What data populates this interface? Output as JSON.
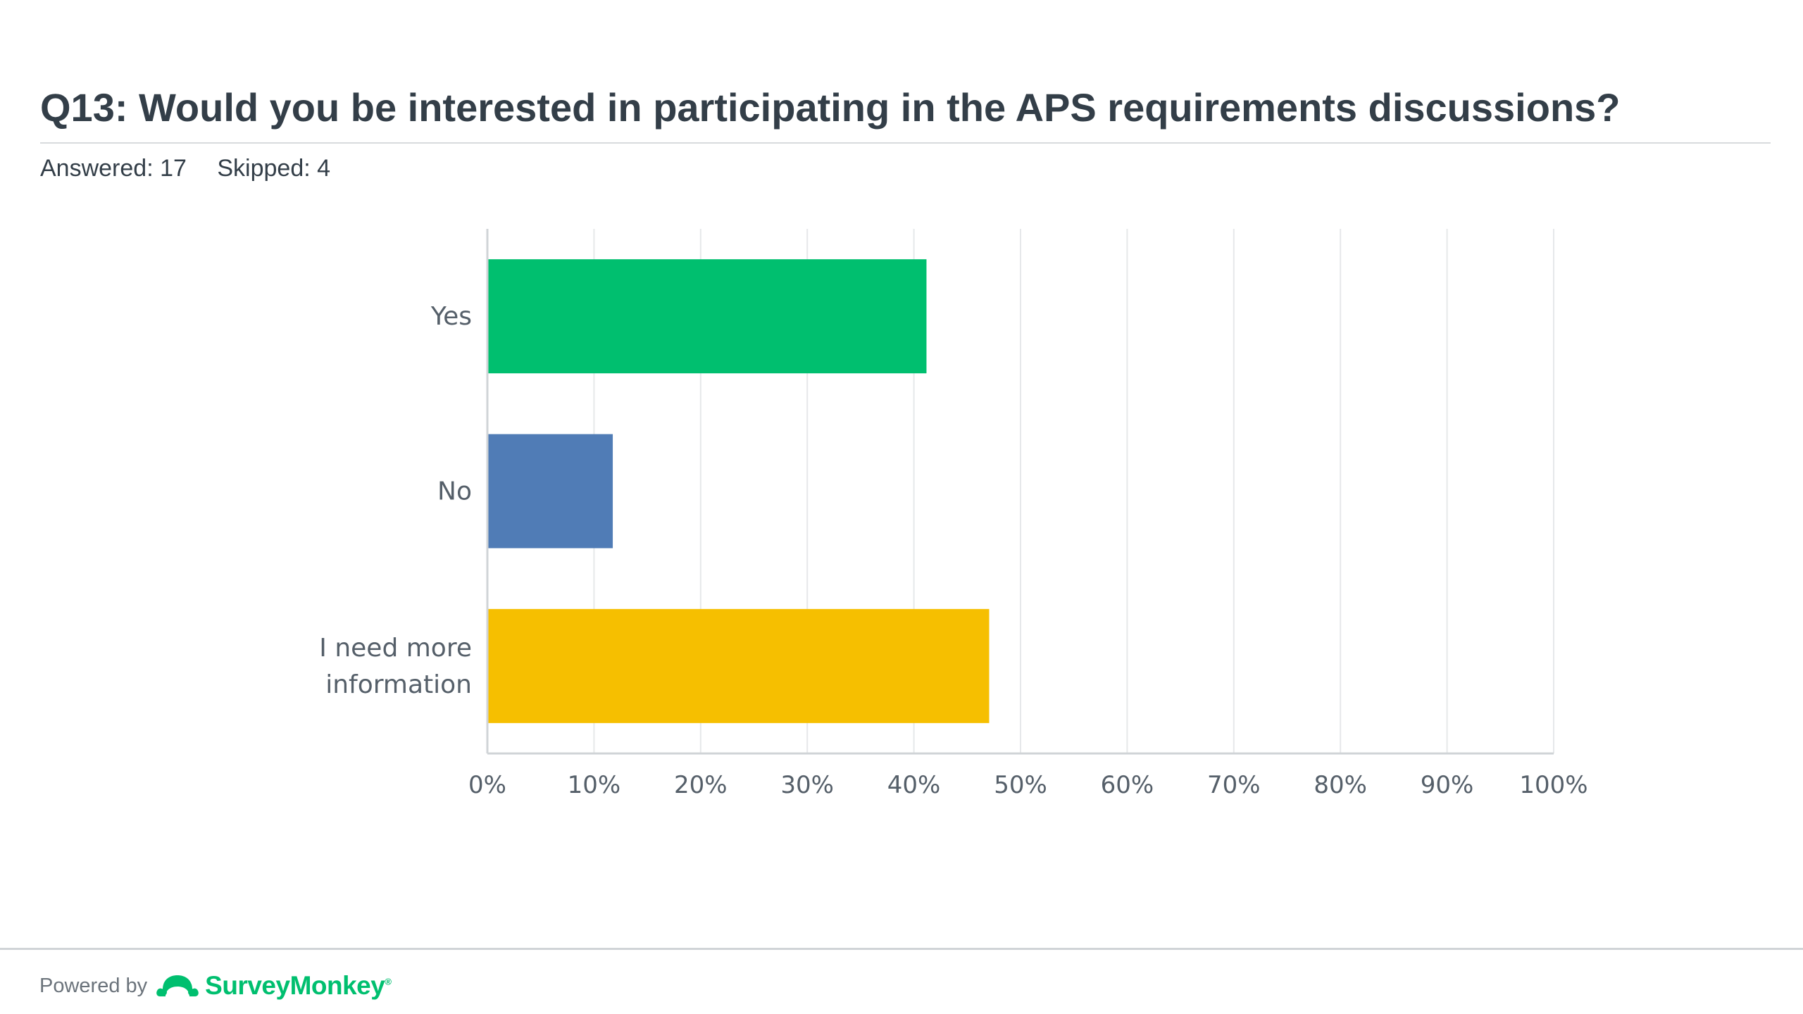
{
  "question": {
    "title": "Q13: Would you be interested in participating in the APS requirements discussions?",
    "answered": "Answered: 17",
    "skipped": "Skipped: 4"
  },
  "chart_data": {
    "type": "bar",
    "orientation": "horizontal",
    "title": "",
    "xlabel": "",
    "ylabel": "",
    "categories": [
      "Yes",
      "No",
      "I need more information"
    ],
    "category_lines": [
      [
        "Yes"
      ],
      [
        "No"
      ],
      [
        "I need more",
        "information"
      ]
    ],
    "values": [
      41.18,
      11.76,
      47.06
    ],
    "colors": [
      "#00bf6f",
      "#507cb6",
      "#f6bf00"
    ],
    "xlim": [
      0,
      100
    ],
    "xticks": [
      "0%",
      "10%",
      "20%",
      "30%",
      "40%",
      "50%",
      "60%",
      "70%",
      "80%",
      "90%",
      "100%"
    ],
    "grid": true,
    "legend": "none"
  },
  "footer": {
    "powered_by": "Powered by",
    "brand": "SurveyMonkey",
    "brand_mark": "®",
    "logo_icon": "surveymonkey-logo-icon"
  }
}
